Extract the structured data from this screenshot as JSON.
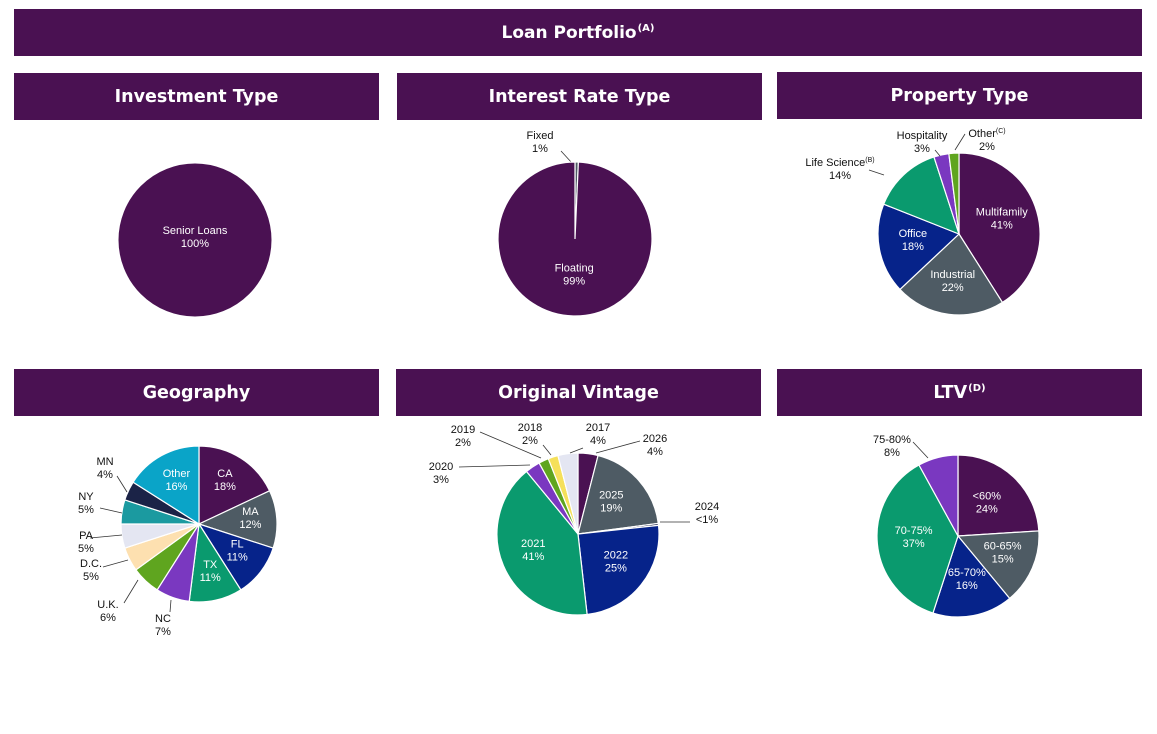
{
  "header": {
    "title": "Loan Portfolio",
    "title_note": "(A)"
  },
  "colors": {
    "header_bg": "#4a1152",
    "purple": "#4a1152",
    "slate": "#4e5b64",
    "navy": "#06238a",
    "green": "#0a9a6e",
    "violet": "#7a38c0",
    "lime": "#5fa51f",
    "teal": "#1b9aa0",
    "cyan": "#0aa4c8",
    "darknavy": "#1b2347",
    "lavender": "#e4e6f2",
    "peach": "#fde0b0",
    "yellow": "#f5e05a"
  },
  "chart_data": [
    {
      "type": "pie",
      "id": "investment",
      "title": "Investment Type",
      "title_note": "",
      "slices": [
        {
          "label": "Senior Loans",
          "pct": "100%",
          "value": 100,
          "color": "#4a1152"
        }
      ]
    },
    {
      "type": "pie",
      "id": "interest",
      "title": "Interest Rate Type",
      "title_note": "",
      "slices": [
        {
          "label": "Fixed",
          "pct": "1%",
          "value": 0.7,
          "color": "#4e5b64"
        },
        {
          "label": "Floating",
          "pct": "99%",
          "value": 99.3,
          "color": "#4a1152"
        }
      ]
    },
    {
      "type": "pie",
      "id": "property",
      "title": "Property Type",
      "title_note": "",
      "slices": [
        {
          "label": "Multifamily",
          "pct": "41%",
          "value": 41,
          "color": "#4a1152"
        },
        {
          "label": "Industrial",
          "pct": "22%",
          "value": 22,
          "color": "#4e5b64"
        },
        {
          "label": "Office",
          "pct": "18%",
          "value": 18,
          "color": "#06238a"
        },
        {
          "label": "Life Science",
          "label_note": "(B)",
          "pct": "14%",
          "value": 14,
          "color": "#0a9a6e"
        },
        {
          "label": "Hospitality",
          "pct": "3%",
          "value": 3,
          "color": "#7a38c0"
        },
        {
          "label": "Other",
          "label_note": "(C)",
          "pct": "2%",
          "value": 2,
          "color": "#5fa51f"
        }
      ]
    },
    {
      "type": "pie",
      "id": "geography",
      "title": "Geography",
      "title_note": "",
      "slices": [
        {
          "label": "CA",
          "pct": "18%",
          "value": 18,
          "color": "#4a1152"
        },
        {
          "label": "MA",
          "pct": "12%",
          "value": 12,
          "color": "#4e5b64"
        },
        {
          "label": "FL",
          "pct": "11%",
          "value": 11,
          "color": "#06238a"
        },
        {
          "label": "TX",
          "pct": "11%",
          "value": 11,
          "color": "#0a9a6e"
        },
        {
          "label": "NC",
          "pct": "7%",
          "value": 7,
          "color": "#7a38c0"
        },
        {
          "label": "U.K.",
          "pct": "6%",
          "value": 6,
          "color": "#5fa51f"
        },
        {
          "label": "D.C.",
          "pct": "5%",
          "value": 5,
          "color": "#fde0b0"
        },
        {
          "label": "PA",
          "pct": "5%",
          "value": 5,
          "color": "#e4e6f2"
        },
        {
          "label": "NY",
          "pct": "5%",
          "value": 5,
          "color": "#1b9aa0"
        },
        {
          "label": "MN",
          "pct": "4%",
          "value": 4,
          "color": "#1b2347"
        },
        {
          "label": "Other",
          "pct": "16%",
          "value": 16,
          "color": "#0aa4c8"
        }
      ]
    },
    {
      "type": "pie",
      "id": "vintage",
      "title": "Original Vintage",
      "title_note": "",
      "slices": [
        {
          "label": "2026",
          "pct": "4%",
          "value": 4,
          "color": "#4a1152"
        },
        {
          "label": "2025",
          "pct": "19%",
          "value": 19,
          "color": "#4e5b64"
        },
        {
          "label": "2024",
          "pct": "<1%",
          "value": 0.4,
          "color": "#1b2347"
        },
        {
          "label": "2022",
          "pct": "25%",
          "value": 25,
          "color": "#06238a"
        },
        {
          "label": "2021",
          "pct": "41%",
          "value": 41,
          "color": "#0a9a6e"
        },
        {
          "label": "2020",
          "pct": "3%",
          "value": 3,
          "color": "#7a38c0"
        },
        {
          "label": "2019",
          "pct": "2%",
          "value": 2,
          "color": "#5fa51f"
        },
        {
          "label": "2018",
          "pct": "2%",
          "value": 2,
          "color": "#f5e05a"
        },
        {
          "label": "2017",
          "pct": "4%",
          "value": 4,
          "color": "#e4e6f2"
        }
      ]
    },
    {
      "type": "pie",
      "id": "ltv",
      "title": "LTV",
      "title_note": "(D)",
      "slices": [
        {
          "label": "<60%",
          "pct": "24%",
          "value": 24,
          "color": "#4a1152"
        },
        {
          "label": "60-65%",
          "pct": "15%",
          "value": 15,
          "color": "#4e5b64"
        },
        {
          "label": "65-70%",
          "pct": "16%",
          "value": 16,
          "color": "#06238a"
        },
        {
          "label": "70-75%",
          "pct": "37%",
          "value": 37,
          "color": "#0a9a6e"
        },
        {
          "label": "75-80%",
          "pct": "8%",
          "value": 8,
          "color": "#7a38c0"
        }
      ]
    }
  ]
}
